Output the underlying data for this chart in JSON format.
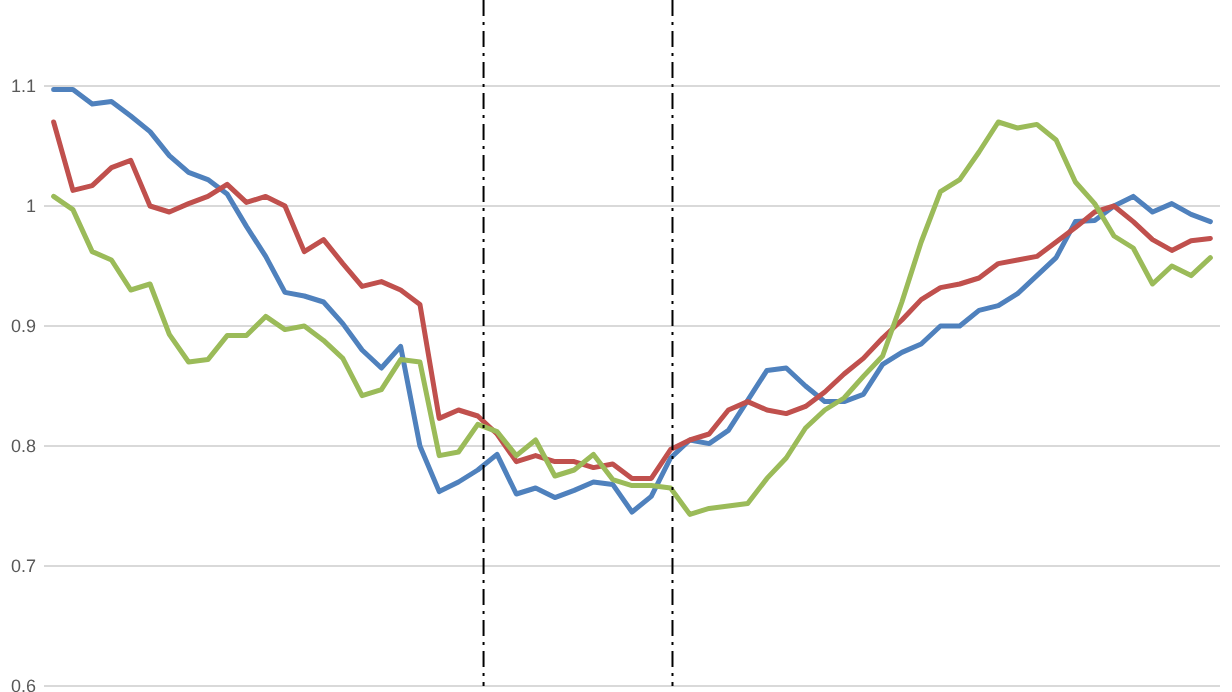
{
  "chart_data": {
    "type": "line",
    "categories": [
      null,
      null,
      null,
      null,
      null,
      null,
      null,
      null,
      null,
      null,
      null,
      null,
      null,
      null,
      null,
      null,
      null,
      null,
      null,
      null,
      null,
      null,
      null,
      null,
      null,
      null,
      null,
      null,
      null,
      null,
      null,
      null,
      null,
      null,
      null,
      null,
      null,
      null,
      null,
      null,
      null,
      null,
      null,
      null,
      null,
      null,
      null,
      null,
      null,
      null,
      null,
      null,
      null,
      null,
      null,
      null,
      null,
      null,
      null,
      null,
      null
    ],
    "series": [
      {
        "color": "#4f81bd",
        "values": [
          1.097,
          1.097,
          1.085,
          1.087,
          1.075,
          1.062,
          1.042,
          1.028,
          1.022,
          1.01,
          0.983,
          0.958,
          0.928,
          0.925,
          0.92,
          0.902,
          0.88,
          0.865,
          0.883,
          0.8,
          0.762,
          0.77,
          0.78,
          0.793,
          0.76,
          0.765,
          0.757,
          0.763,
          0.77,
          0.768,
          0.745,
          0.758,
          0.79,
          0.805,
          0.802,
          0.813,
          0.838,
          0.863,
          0.865,
          0.85,
          0.837,
          0.837,
          0.843,
          0.868,
          0.878,
          0.885,
          0.9,
          0.9,
          0.913,
          0.917,
          0.927,
          0.942,
          0.957,
          0.987,
          0.988,
          1.0,
          1.008,
          0.995,
          1.002,
          0.993,
          0.987
        ]
      },
      {
        "color": "#c0504d",
        "values": [
          1.07,
          1.013,
          1.017,
          1.032,
          1.038,
          1.0,
          0.995,
          1.002,
          1.008,
          1.018,
          1.003,
          1.008,
          1.0,
          0.962,
          0.972,
          0.952,
          0.933,
          0.937,
          0.93,
          0.918,
          0.823,
          0.83,
          0.825,
          0.81,
          0.787,
          0.792,
          0.787,
          0.787,
          0.782,
          0.785,
          0.773,
          0.773,
          0.797,
          0.805,
          0.81,
          0.83,
          0.837,
          0.83,
          0.827,
          0.833,
          0.845,
          0.86,
          0.873,
          0.89,
          0.905,
          0.922,
          0.932,
          0.935,
          0.94,
          0.952,
          0.955,
          0.958,
          0.97,
          0.982,
          0.995,
          1.0,
          0.987,
          0.972,
          0.963,
          0.971,
          0.973
        ]
      },
      {
        "color": "#9bbb59",
        "values": [
          1.008,
          0.997,
          0.962,
          0.955,
          0.93,
          0.935,
          0.893,
          0.87,
          0.872,
          0.892,
          0.892,
          0.908,
          0.897,
          0.9,
          0.888,
          0.873,
          0.842,
          0.847,
          0.872,
          0.87,
          0.792,
          0.795,
          0.818,
          0.812,
          0.792,
          0.805,
          0.775,
          0.78,
          0.793,
          0.772,
          0.767,
          0.767,
          0.765,
          0.743,
          0.748,
          0.75,
          0.752,
          0.773,
          0.79,
          0.815,
          0.83,
          0.84,
          0.858,
          0.875,
          0.92,
          0.97,
          1.012,
          1.022,
          1.045,
          1.07,
          1.065,
          1.068,
          1.055,
          1.02,
          1.002,
          0.975,
          0.965,
          0.935,
          0.95,
          0.942,
          0.957
        ]
      }
    ],
    "ylim": [
      0.6,
      1.1
    ],
    "yticks": [
      0.6,
      0.7,
      0.8,
      0.9,
      1,
      1.1
    ],
    "tick_labels": "y",
    "grid": "y",
    "line_style": "solid"
  }
}
